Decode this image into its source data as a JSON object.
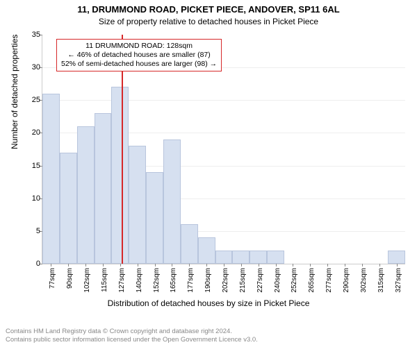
{
  "title": "11, DRUMMOND ROAD, PICKET PIECE, ANDOVER, SP11 6AL",
  "subtitle": "Size of property relative to detached houses in Picket Piece",
  "ylabel": "Number of detached properties",
  "xlabel": "Distribution of detached houses by size in Picket Piece",
  "chart": {
    "type": "histogram",
    "ylim": [
      0,
      35
    ],
    "ytick_step": 5,
    "yticks": [
      0,
      5,
      10,
      15,
      20,
      25,
      30,
      35
    ],
    "bar_color": "#d6e0f0",
    "bar_border_color": "#b8c5dd",
    "grid_color": "#eeeeee",
    "background_color": "#ffffff",
    "marker_color": "#d62728",
    "marker_value": 128,
    "xticks": [
      "77sqm",
      "90sqm",
      "102sqm",
      "115sqm",
      "127sqm",
      "140sqm",
      "152sqm",
      "165sqm",
      "177sqm",
      "190sqm",
      "202sqm",
      "215sqm",
      "227sqm",
      "240sqm",
      "252sqm",
      "265sqm",
      "277sqm",
      "290sqm",
      "302sqm",
      "315sqm",
      "327sqm"
    ],
    "values": [
      26,
      17,
      21,
      23,
      27,
      18,
      14,
      19,
      6,
      4,
      2,
      2,
      2,
      2,
      0,
      0,
      0,
      0,
      0,
      0,
      2
    ]
  },
  "annotation": {
    "line1": "11 DRUMMOND ROAD: 128sqm",
    "line2": "← 46% of detached houses are smaller (87)",
    "line3": "52% of semi-detached houses are larger (98) →"
  },
  "footer": {
    "line1": "Contains HM Land Registry data © Crown copyright and database right 2024.",
    "line2": "Contains public sector information licensed under the Open Government Licence v3.0."
  }
}
